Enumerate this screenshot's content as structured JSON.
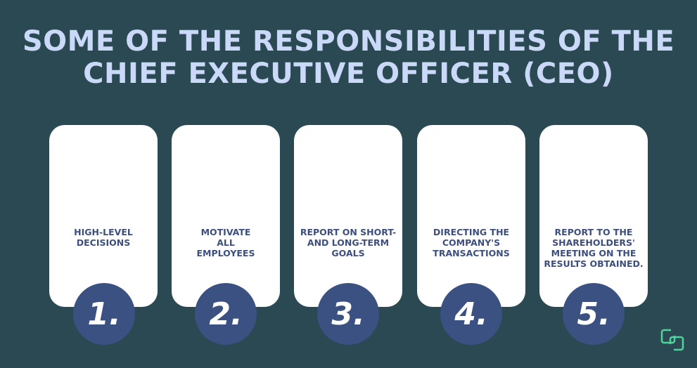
{
  "title": {
    "line1": "SOME OF THE RESPONSIBILITIES OF THE",
    "line2": "CHIEF EXECUTIVE OFFICER (CEO)"
  },
  "items": [
    {
      "number": "1.",
      "text": "HIGH-LEVEL DECISIONS"
    },
    {
      "number": "2.",
      "text": "MOTIVATE ALL EMPLOYEES"
    },
    {
      "number": "3.",
      "text": "REPORT ON SHORT- AND LONG-TERM GOALS"
    },
    {
      "number": "4.",
      "text": "DIRECTING THE COMPANY'S TRANSACTIONS"
    },
    {
      "number": "5.",
      "text": "REPORT TO THE SHAREHOLDERS' MEETING ON THE RESULTS OBTAINED."
    }
  ],
  "colors": {
    "background": "#2a4953",
    "title": "#c9d9f7",
    "circle": "#3a5182",
    "card_text": "#3d4f7e",
    "logo": "#4fd39a"
  },
  "logo": {
    "icon": "linked-squares-logo"
  }
}
